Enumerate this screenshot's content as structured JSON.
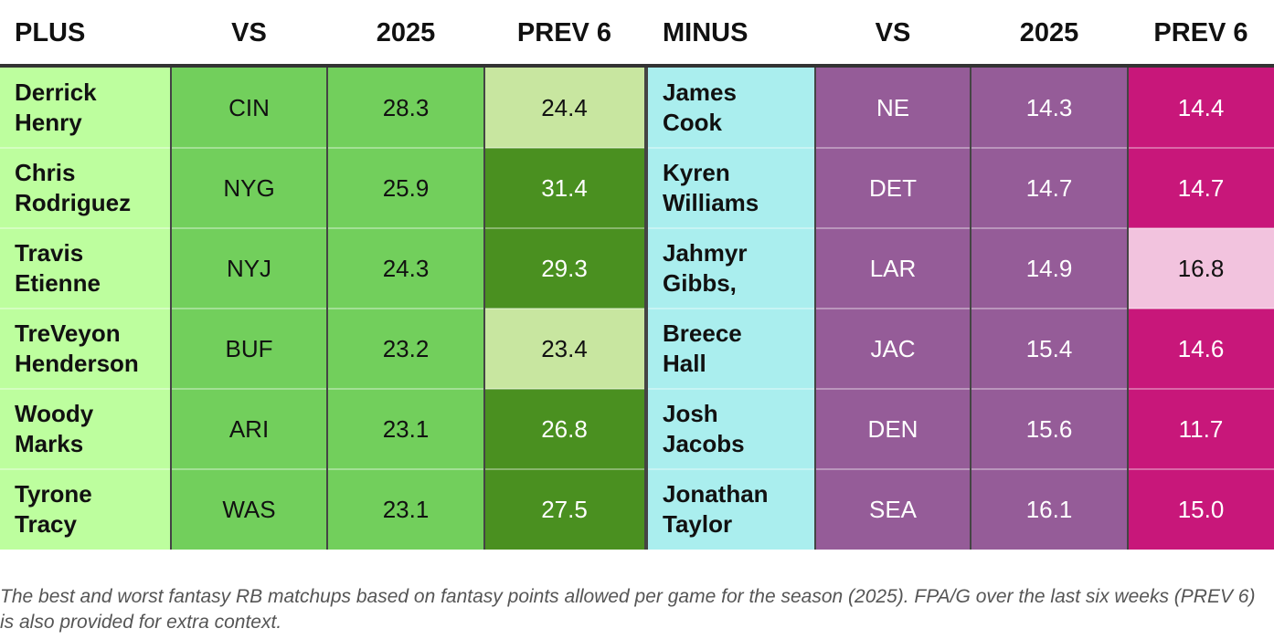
{
  "chart_data": {
    "type": "table",
    "plus": {
      "header": {
        "player": "PLUS",
        "vs": "VS",
        "season": "2025",
        "prev": "PREV 6"
      },
      "rows": [
        {
          "first": "Derrick",
          "last": "Henry",
          "vs": "CIN",
          "season": "28.3",
          "prev": "24.4",
          "prev_color": "#c8e6a0",
          "prev_text": "#111111"
        },
        {
          "first": "Chris",
          "last": "Rodriguez",
          "vs": "NYG",
          "season": "25.9",
          "prev": "31.4",
          "prev_color": "#4a9020",
          "prev_text": "#ffffff"
        },
        {
          "first": "Travis",
          "last": "Etienne",
          "vs": "NYJ",
          "season": "24.3",
          "prev": "29.3",
          "prev_color": "#4a9020",
          "prev_text": "#ffffff"
        },
        {
          "first": "TreVeyon",
          "last": "Henderson",
          "vs": "BUF",
          "season": "23.2",
          "prev": "23.4",
          "prev_color": "#c8e6a0",
          "prev_text": "#111111"
        },
        {
          "first": "Woody",
          "last": "Marks",
          "vs": "ARI",
          "season": "23.1",
          "prev": "26.8",
          "prev_color": "#4a9020",
          "prev_text": "#ffffff"
        },
        {
          "first": "Tyrone",
          "last": "Tracy",
          "vs": "WAS",
          "season": "23.1",
          "prev": "27.5",
          "prev_color": "#4a9020",
          "prev_text": "#ffffff"
        }
      ]
    },
    "minus": {
      "header": {
        "player": "MINUS",
        "vs": "VS",
        "season": "2025",
        "prev": "PREV 6"
      },
      "rows": [
        {
          "first": "James",
          "last": "Cook",
          "vs": "NE",
          "season": "14.3",
          "prev": "14.4",
          "prev_color": "#c8177a",
          "prev_text": "#ffffff"
        },
        {
          "first": "Kyren",
          "last": "Williams",
          "vs": "DET",
          "season": "14.7",
          "prev": "14.7",
          "prev_color": "#c8177a",
          "prev_text": "#ffffff"
        },
        {
          "first": "Jahmyr",
          "last": "Gibbs,",
          "vs": "LAR",
          "season": "14.9",
          "prev": "16.8",
          "prev_color": "#f2c3de",
          "prev_text": "#111111"
        },
        {
          "first": "Breece",
          "last": "Hall",
          "vs": "JAC",
          "season": "15.4",
          "prev": "14.6",
          "prev_color": "#c8177a",
          "prev_text": "#ffffff"
        },
        {
          "first": "Josh",
          "last": "Jacobs",
          "vs": "DEN",
          "season": "15.6",
          "prev": "11.7",
          "prev_color": "#c8177a",
          "prev_text": "#ffffff"
        },
        {
          "first": "Jonathan",
          "last": "Taylor",
          "vs": "SEA",
          "season": "16.1",
          "prev": "15.0",
          "prev_color": "#c8177a",
          "prev_text": "#ffffff"
        }
      ]
    },
    "colors": {
      "plus_name_bg": "#bdfe9e",
      "plus_vs_bg": "#72cf5c",
      "plus_season_bg": "#72cf5c",
      "minus_name_bg": "#aaeeee",
      "minus_vs_bg": "#955c98",
      "minus_season_bg": "#955c98",
      "row_divider": "#ffffff"
    },
    "caption": "The best and worst fantasy RB matchups based on fantasy points allowed per game for the season (2025). FPA/G over the last six weeks (PREV 6) is also provided for extra context."
  }
}
